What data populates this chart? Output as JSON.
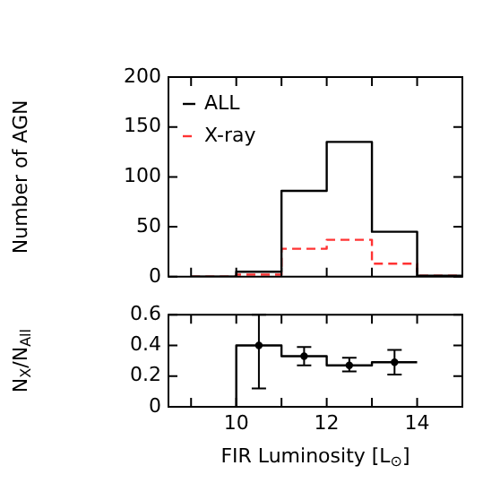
{
  "chart_data": [
    {
      "type": "histogram",
      "bins": [
        9,
        10,
        11,
        12,
        13,
        14,
        15
      ],
      "series": [
        {
          "name": "ALL",
          "color": "#000000",
          "values": [
            0,
            5,
            86,
            135,
            45,
            1
          ],
          "line_style": "solid"
        },
        {
          "name": "X-ray",
          "color": "#ff3333",
          "values": [
            0,
            2,
            28,
            37,
            13,
            1
          ],
          "line_style": "dashed"
        }
      ],
      "xlim": [
        8.5,
        15
      ],
      "xticks": [
        {
          "value": 9,
          "label": null
        },
        {
          "value": 10,
          "label": null
        },
        {
          "value": 11,
          "label": null
        },
        {
          "value": 12,
          "label": null
        },
        {
          "value": 13,
          "label": null
        },
        {
          "value": 14,
          "label": null
        }
      ],
      "ylim": [
        0,
        200
      ],
      "yticks": [
        0,
        50,
        100,
        150,
        200
      ],
      "ylabel": "Number of AGN",
      "legend": "top left",
      "tick_labels": "y",
      "marker": "none"
    },
    {
      "type": "step",
      "series": [
        {
          "type": "step",
          "x": [
            10,
            10,
            11,
            12,
            13,
            14
          ],
          "values": [
            0,
            0.4,
            0.33,
            0.27,
            0.29,
            0.29
          ],
          "color": "#000000"
        },
        {
          "type": "scatter",
          "x": [
            10.5,
            11.5,
            12.5,
            13.5
          ],
          "values": [
            0.4,
            0.33,
            0.27,
            0.29
          ],
          "color": "#000000",
          "marker": "circle",
          "errors": [
            [
              0.12,
              0.6
            ],
            [
              0.27,
              0.39
            ],
            [
              0.23,
              0.32
            ],
            [
              0.21,
              0.37
            ]
          ]
        }
      ],
      "xlim": [
        8.5,
        15
      ],
      "xticks": [
        {
          "value": 9,
          "label": null
        },
        10,
        {
          "value": 11,
          "label": null
        },
        12,
        {
          "value": 13,
          "label": null
        },
        14
      ],
      "ylim": [
        0,
        0.6
      ],
      "yticks": [
        0,
        0.2,
        0.4,
        0.6
      ],
      "xlabel": "FIR Luminosity [L$_{⊙}$]",
      "ylabel": "N$_{X}$/N$_{All}$"
    }
  ]
}
